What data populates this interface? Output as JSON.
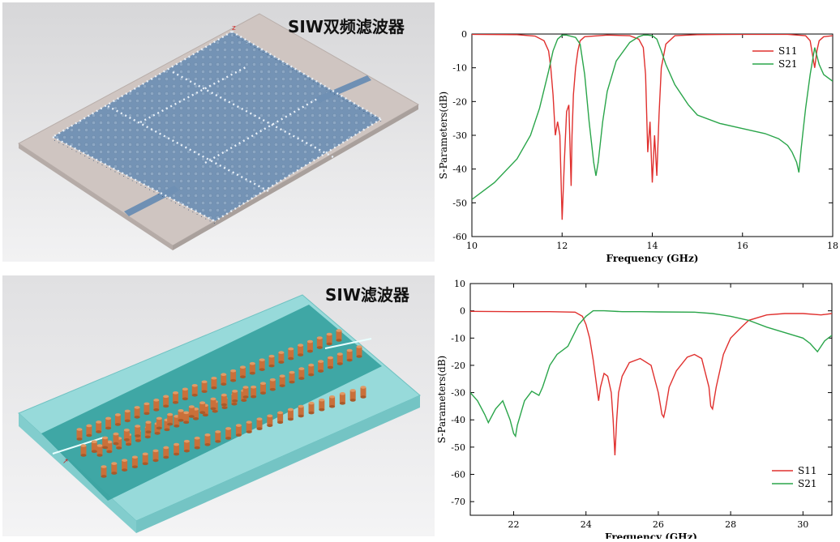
{
  "panels": {
    "top_model_title": "SIW双频滤波器",
    "bottom_model_title": "SIW滤波器"
  },
  "colors": {
    "s11": "#e0302e",
    "s21": "#2aa54a",
    "axis": "#000000",
    "substrate_top": "#cfc6c2",
    "siw_blue": "#6d8fb3",
    "substrate_cyan": "#8fd6d6",
    "siw_teal": "#2f9c9a",
    "via_orange": "#c9703a"
  },
  "chart_data": [
    {
      "type": "line",
      "title": "",
      "xlabel": "Frequency (GHz)",
      "ylabel": "S-Parameters(dB)",
      "xlim": [
        10,
        18
      ],
      "ylim": [
        -60,
        0
      ],
      "xticks": [
        "10",
        "12",
        "14",
        "16",
        "18"
      ],
      "yticks": [
        "0",
        "-10",
        "-20",
        "-30",
        "-40",
        "-50",
        "-60"
      ],
      "legend": [
        "S11",
        "S21"
      ],
      "legend_position": "top-right",
      "series": [
        {
          "name": "S11",
          "x": [
            10,
            11,
            11.4,
            11.6,
            11.7,
            11.75,
            11.8,
            11.85,
            11.9,
            11.95,
            12.0,
            12.05,
            12.1,
            12.15,
            12.2,
            12.22,
            12.25,
            12.3,
            12.35,
            12.4,
            12.5,
            13.0,
            13.5,
            13.7,
            13.8,
            13.85,
            13.9,
            13.95,
            14.0,
            14.05,
            14.1,
            14.15,
            14.2,
            14.3,
            14.5,
            15.0,
            16.0,
            17.0,
            17.4,
            17.5,
            17.55,
            17.6,
            17.65,
            17.7,
            17.8,
            18
          ],
          "y": [
            -0.1,
            -0.2,
            -0.6,
            -2,
            -5,
            -10,
            -18,
            -30,
            -26,
            -30,
            -55,
            -38,
            -23,
            -21,
            -45,
            -30,
            -18,
            -10,
            -5,
            -2,
            -0.8,
            -0.3,
            -0.5,
            -1.5,
            -4,
            -12,
            -35,
            -26,
            -44,
            -30,
            -42,
            -24,
            -10,
            -3,
            -0.5,
            -0.2,
            -0.1,
            -0.1,
            -0.5,
            -2,
            -6,
            -10,
            -5,
            -2,
            -0.8,
            -0.5
          ]
        },
        {
          "name": "S21",
          "x": [
            10,
            10.5,
            11,
            11.3,
            11.5,
            11.7,
            11.8,
            11.9,
            12.0,
            12.1,
            12.3,
            12.4,
            12.5,
            12.6,
            12.7,
            12.75,
            12.8,
            12.9,
            13.0,
            13.2,
            13.5,
            13.7,
            13.8,
            13.9,
            14.0,
            14.1,
            14.2,
            14.3,
            14.5,
            14.8,
            15.0,
            15.5,
            16.0,
            16.5,
            16.8,
            17.0,
            17.1,
            17.2,
            17.25,
            17.3,
            17.35,
            17.4,
            17.5,
            17.6,
            17.7,
            17.8,
            18
          ],
          "y": [
            -49,
            -44,
            -37,
            -30,
            -22,
            -11,
            -5,
            -1.5,
            -0.3,
            -0.3,
            -1,
            -3,
            -12,
            -26,
            -38,
            -42,
            -38,
            -26,
            -17,
            -8,
            -2.5,
            -0.8,
            -0.3,
            -0.3,
            -0.5,
            -1.5,
            -5,
            -9,
            -15,
            -21,
            -24,
            -26.5,
            -28,
            -29.5,
            -31,
            -33,
            -35,
            -38,
            -41,
            -34,
            -28,
            -22,
            -12,
            -4,
            -9,
            -12,
            -14
          ]
        }
      ]
    },
    {
      "type": "line",
      "title": "",
      "xlabel": "Frequency (GHz)",
      "ylabel": "S-Parameters(dB)",
      "xlim": [
        20.8,
        30.8
      ],
      "ylim": [
        -75,
        10
      ],
      "xticks": [
        "22",
        "24",
        "26",
        "28",
        "30"
      ],
      "xtick_values": [
        22,
        24,
        26,
        28,
        30
      ],
      "yticks": [
        "10",
        "0",
        "-10",
        "-20",
        "-30",
        "-40",
        "-50",
        "-60",
        "-70"
      ],
      "legend": [
        "S11",
        "S21"
      ],
      "legend_position": "bottom-right",
      "series": [
        {
          "name": "S11",
          "x": [
            20.8,
            22,
            23,
            23.7,
            23.9,
            24.0,
            24.1,
            24.2,
            24.3,
            24.35,
            24.4,
            24.5,
            24.6,
            24.7,
            24.75,
            24.8,
            24.85,
            24.9,
            25.0,
            25.2,
            25.5,
            25.8,
            26.0,
            26.1,
            26.15,
            26.2,
            26.3,
            26.5,
            26.8,
            27.0,
            27.2,
            27.4,
            27.45,
            27.5,
            27.6,
            27.8,
            28.0,
            28.3,
            28.5,
            29.0,
            29.5,
            30.0,
            30.5,
            30.8
          ],
          "y": [
            -0.2,
            -0.3,
            -0.3,
            -0.5,
            -2,
            -5,
            -10,
            -18,
            -28,
            -33,
            -28,
            -23,
            -24,
            -30,
            -40,
            -53,
            -40,
            -30,
            -24,
            -19,
            -17.5,
            -20,
            -30,
            -38,
            -39,
            -36,
            -28,
            -22,
            -17,
            -16,
            -17.5,
            -28,
            -35,
            -36,
            -28,
            -16,
            -10,
            -6,
            -3.5,
            -1.5,
            -1,
            -1,
            -1.5,
            -1
          ]
        },
        {
          "name": "S21",
          "x": [
            20.8,
            21.0,
            21.2,
            21.3,
            21.5,
            21.7,
            21.9,
            22.0,
            22.05,
            22.1,
            22.3,
            22.5,
            22.7,
            22.8,
            23.0,
            23.2,
            23.5,
            23.8,
            24.0,
            24.2,
            24.5,
            25.0,
            25.5,
            26.0,
            27.0,
            27.5,
            28.0,
            28.5,
            29.0,
            29.5,
            30.0,
            30.2,
            30.4,
            30.6,
            30.8
          ],
          "y": [
            -30,
            -33,
            -38,
            -41,
            -36,
            -33,
            -40,
            -45,
            -46,
            -42,
            -33,
            -29.5,
            -31,
            -28,
            -20,
            -16,
            -13,
            -5,
            -2,
            0,
            0,
            -0.3,
            -0.3,
            -0.4,
            -0.5,
            -1,
            -2,
            -3.5,
            -6,
            -8,
            -10,
            -12,
            -15,
            -11,
            -9
          ]
        }
      ]
    }
  ]
}
